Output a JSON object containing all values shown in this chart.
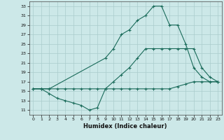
{
  "xlabel": "Humidex (Indice chaleur)",
  "xlim": [
    -0.5,
    23.5
  ],
  "ylim": [
    10.0,
    34.0
  ],
  "yticks": [
    11,
    13,
    15,
    17,
    19,
    21,
    23,
    25,
    27,
    29,
    31,
    33
  ],
  "xticks": [
    0,
    1,
    2,
    3,
    4,
    5,
    6,
    7,
    8,
    9,
    10,
    11,
    12,
    13,
    14,
    15,
    16,
    17,
    18,
    19,
    20,
    21,
    22,
    23
  ],
  "line_color": "#1a6b5a",
  "bg_color": "#cce8e8",
  "grid_color": "#aacccc",
  "line1_x": [
    0,
    1,
    2,
    3,
    4,
    5,
    6,
    7,
    8,
    9,
    10,
    11,
    12,
    13,
    14,
    15,
    16,
    17,
    18,
    19,
    20,
    21,
    22,
    23
  ],
  "line1_y": [
    15.5,
    15.5,
    15.5,
    15.5,
    15.5,
    15.5,
    15.5,
    15.5,
    15.5,
    15.5,
    15.5,
    15.5,
    15.5,
    15.5,
    15.5,
    15.5,
    15.5,
    15.5,
    16.0,
    16.5,
    17.0,
    17.0,
    17.0,
    17.0
  ],
  "line2_x": [
    0,
    1,
    2,
    3,
    4,
    5,
    6,
    7,
    8,
    9,
    10,
    11,
    12,
    13,
    14,
    15,
    16,
    17,
    18,
    19,
    20,
    21,
    22,
    23
  ],
  "line2_y": [
    15.5,
    15.5,
    14.5,
    13.5,
    13.0,
    12.5,
    12.0,
    11.0,
    11.5,
    15.5,
    17.0,
    18.5,
    20.0,
    22.0,
    24.0,
    24.0,
    24.0,
    24.0,
    24.0,
    24.0,
    24.0,
    20.0,
    18.0,
    17.0
  ],
  "line3_x": [
    0,
    1,
    2,
    9,
    10,
    11,
    12,
    13,
    14,
    15,
    16,
    17,
    18,
    19,
    20,
    21,
    22,
    23
  ],
  "line3_y": [
    15.5,
    15.5,
    15.5,
    22.0,
    24.0,
    27.0,
    28.0,
    30.0,
    31.0,
    33.0,
    33.0,
    29.0,
    29.0,
    25.0,
    20.0,
    18.0,
    17.0,
    17.0
  ]
}
